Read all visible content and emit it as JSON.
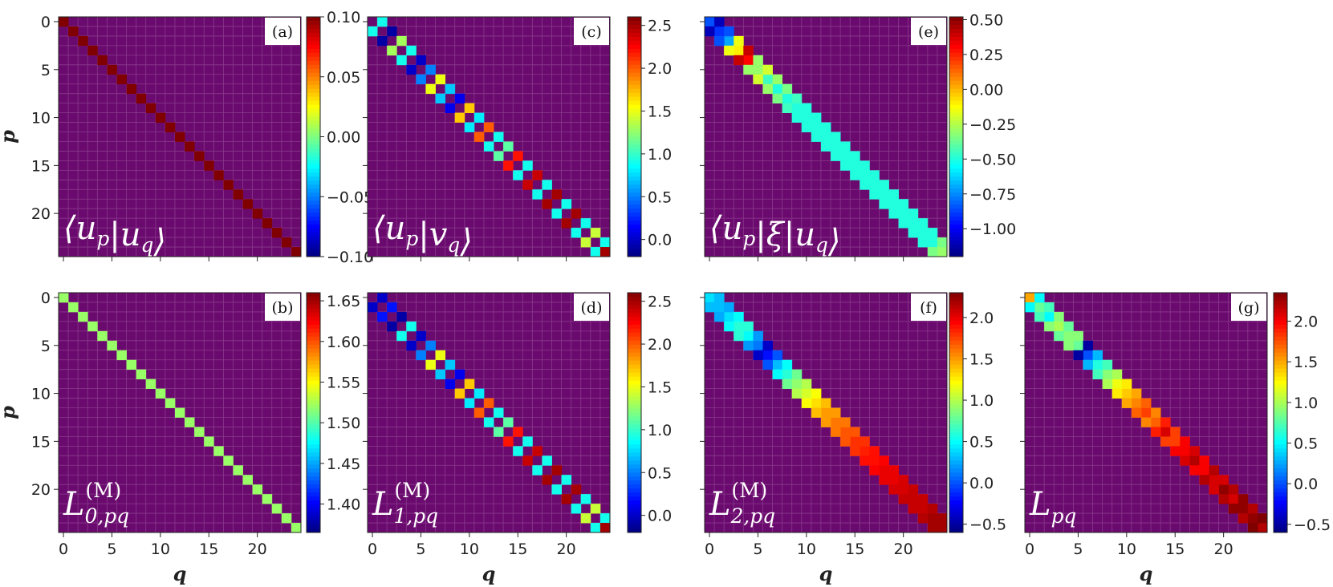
{
  "chart_data": [
    {
      "id": "a",
      "panel_label": "(a)",
      "type": "heatmap",
      "pattern": "diagonal",
      "matrix_label": "⟨u_p|u_q⟩",
      "colorbar": {
        "min": -0.1,
        "max": 0.1,
        "ticks": [
          "0.10",
          "0.05",
          "0.00",
          "−0.05",
          "−0.10"
        ],
        "tick_values": [
          0.1,
          0.05,
          0.0,
          -0.05,
          -0.1
        ]
      },
      "diag": [
        1.02,
        1.02,
        1.02,
        1.02,
        1.02,
        1.02,
        1.02,
        1.02,
        1.02,
        1.02,
        1.02,
        1.02,
        1.02,
        1.02,
        1.02,
        1.02,
        1.02,
        1.02,
        1.02,
        1.02,
        1.02,
        1.02,
        1.02,
        1.02,
        1.02
      ],
      "off1": [],
      "show_y_ticks": true,
      "show_x_ticks": false
    },
    {
      "id": "b",
      "panel_label": "(b)",
      "type": "heatmap",
      "pattern": "diagonal",
      "matrix_label": "L_{0,pq}^{(M)}",
      "colorbar": {
        "min": 1.365,
        "max": 1.66,
        "ticks": [
          "1.65",
          "1.60",
          "1.55",
          "1.50",
          "1.45",
          "1.40"
        ],
        "tick_values": [
          1.65,
          1.6,
          1.55,
          1.5,
          1.45,
          1.4
        ]
      },
      "diag": [
        1.52,
        1.52,
        1.52,
        1.52,
        1.52,
        1.52,
        1.52,
        1.52,
        1.52,
        1.52,
        1.52,
        1.52,
        1.52,
        1.52,
        1.52,
        1.52,
        1.52,
        1.52,
        1.52,
        1.52,
        1.52,
        1.52,
        1.52,
        1.52,
        1.52
      ],
      "off1": [],
      "show_y_ticks": true,
      "show_x_ticks": true
    },
    {
      "id": "c",
      "panel_label": "(c)",
      "type": "heatmap",
      "pattern": "offdiag",
      "matrix_label": "⟨u_p|v_q⟩",
      "colorbar": {
        "min": -0.2,
        "max": 2.6,
        "ticks": [
          "2.5",
          "2.0",
          "1.5",
          "1.0",
          "0.5",
          "0.0"
        ],
        "tick_values": [
          2.5,
          2.0,
          1.5,
          1.0,
          0.5,
          0.0
        ]
      },
      "diag": [
        0.9,
        0.2,
        -0.1,
        1.3,
        0.9,
        0.0,
        0.5,
        1.5,
        0.7,
        0.1,
        1.7,
        0.8,
        2.0,
        0.9,
        1.1,
        2.2,
        0.9,
        2.4,
        0.9,
        2.5,
        0.9,
        2.5,
        0.9,
        1.4,
        2.5
      ],
      "off1": [
        0.9,
        -0.1,
        1.3,
        0.9,
        0.0,
        0.5,
        1.5,
        0.7,
        0.1,
        1.7,
        0.8,
        2.0,
        0.9,
        1.1,
        2.2,
        0.9,
        2.4,
        0.9,
        2.5,
        0.9,
        2.5,
        0.9,
        1.4,
        0.9
      ],
      "show_y_ticks": false,
      "show_x_ticks": false
    },
    {
      "id": "d",
      "panel_label": "(d)",
      "type": "heatmap",
      "pattern": "offdiag",
      "matrix_label": "L_{1,pq}^{(M)}",
      "colorbar": {
        "min": -0.2,
        "max": 2.6,
        "ticks": [
          "2.5",
          "2.0",
          "1.5",
          "1.0",
          "0.5",
          "0.0"
        ],
        "tick_values": [
          2.5,
          2.0,
          1.5,
          1.0,
          0.5,
          0.0
        ]
      },
      "diag": [
        0.9,
        0.1,
        0.2,
        1.3,
        0.9,
        0.0,
        0.5,
        1.5,
        0.7,
        0.1,
        1.7,
        0.8,
        2.0,
        0.9,
        1.1,
        2.2,
        0.9,
        2.4,
        0.9,
        2.5,
        0.9,
        2.5,
        0.9,
        1.4,
        2.5
      ],
      "off1": [
        0.0,
        0.2,
        -0.1,
        0.9,
        0.0,
        0.5,
        1.5,
        0.7,
        0.1,
        1.7,
        0.8,
        2.0,
        0.9,
        1.1,
        2.2,
        0.9,
        2.4,
        0.9,
        2.5,
        0.9,
        2.5,
        0.9,
        1.4,
        0.9
      ],
      "show_y_ticks": false,
      "show_x_ticks": true
    },
    {
      "id": "e",
      "panel_label": "(e)",
      "type": "heatmap",
      "pattern": "band",
      "matrix_label": "⟨u_p|ξ|u_q⟩",
      "colorbar": {
        "min": -1.2,
        "max": 0.52,
        "ticks": [
          "0.50",
          "0.25",
          "0.00",
          "−0.25",
          "−0.50",
          "−0.75",
          "−1.00"
        ],
        "tick_values": [
          0.5,
          0.25,
          0.0,
          -0.25,
          -0.5,
          -0.75,
          -1.0
        ]
      },
      "diag": [
        -0.85,
        -0.9,
        -0.7,
        -0.1,
        0.3,
        -0.3,
        -0.45,
        -0.5,
        -0.5,
        -0.5,
        -0.5,
        -0.5,
        -0.5,
        -0.5,
        -0.5,
        -0.5,
        -0.5,
        -0.5,
        -0.5,
        -0.5,
        -0.5,
        -0.5,
        -0.5,
        -0.5,
        -0.3
      ],
      "off1": [
        -1.1,
        -0.85,
        -0.15,
        0.4,
        -0.3,
        -0.2,
        -0.3,
        -0.35,
        -0.45,
        -0.5,
        -0.5,
        -0.5,
        -0.5,
        -0.5,
        -0.5,
        -0.5,
        -0.5,
        -0.5,
        -0.5,
        -0.5,
        -0.5,
        -0.5,
        -0.5,
        -0.35
      ],
      "show_y_ticks": false,
      "show_x_ticks": false
    },
    {
      "id": "f",
      "panel_label": "(f)",
      "type": "heatmap",
      "pattern": "band",
      "matrix_label": "L_{2,pq}^{(M)}",
      "colorbar": {
        "min": -0.6,
        "max": 2.3,
        "ticks": [
          "2.0",
          "1.5",
          "1.0",
          "0.5",
          "0.0",
          "−0.5"
        ],
        "tick_values": [
          2.0,
          1.5,
          1.0,
          0.5,
          0.0,
          -0.5
        ]
      },
      "diag": [
        0.4,
        0.3,
        0.4,
        0.6,
        0.5,
        0.1,
        -0.2,
        0.3,
        0.6,
        0.9,
        1.1,
        1.3,
        1.5,
        1.6,
        1.7,
        1.8,
        1.85,
        1.9,
        2.0,
        2.0,
        2.05,
        2.1,
        2.1,
        2.2,
        2.2
      ],
      "off1": [
        0.3,
        0.25,
        0.5,
        0.6,
        0.2,
        -0.4,
        0.0,
        0.5,
        0.8,
        1.0,
        1.2,
        1.4,
        1.5,
        1.6,
        1.7,
        1.8,
        1.9,
        1.95,
        2.0,
        2.05,
        2.1,
        2.1,
        2.15,
        2.2
      ],
      "show_y_ticks": false,
      "show_x_ticks": true
    },
    {
      "id": "g",
      "panel_label": "(g)",
      "type": "heatmap",
      "pattern": "band",
      "matrix_label": "L_pq",
      "colorbar": {
        "min": -0.6,
        "max": 2.35,
        "ticks": [
          "2.0",
          "1.5",
          "1.0",
          "0.5",
          "0.0",
          "−0.5"
        ],
        "tick_values": [
          2.0,
          1.5,
          1.0,
          0.5,
          0.0,
          -0.5
        ]
      },
      "diag": [
        1.5,
        0.8,
        0.5,
        1.0,
        0.9,
        0.8,
        0.0,
        0.6,
        0.9,
        1.2,
        1.4,
        1.6,
        1.8,
        1.7,
        2.1,
        1.8,
        2.0,
        2.2,
        2.0,
        2.1,
        2.3,
        2.1,
        2.3,
        2.3,
        2.2
      ],
      "off1": [
        0.5,
        0.7,
        0.9,
        0.8,
        0.9,
        -0.5,
        0.3,
        0.7,
        1.0,
        1.3,
        1.5,
        1.7,
        1.6,
        1.9,
        1.8,
        2.0,
        2.1,
        2.0,
        2.2,
        2.1,
        2.2,
        2.3,
        2.2,
        2.4
      ],
      "show_y_ticks": false,
      "show_x_ticks": true
    }
  ],
  "axes": {
    "size": 25,
    "tick_values": [
      0,
      5,
      10,
      15,
      20
    ],
    "x_label": "q",
    "y_label": "p",
    "tick_labels": [
      "0",
      "5",
      "10",
      "15",
      "20"
    ]
  },
  "colors": {
    "background_cell": "#6a0a6e",
    "grid_line": "#8a3a8c"
  }
}
